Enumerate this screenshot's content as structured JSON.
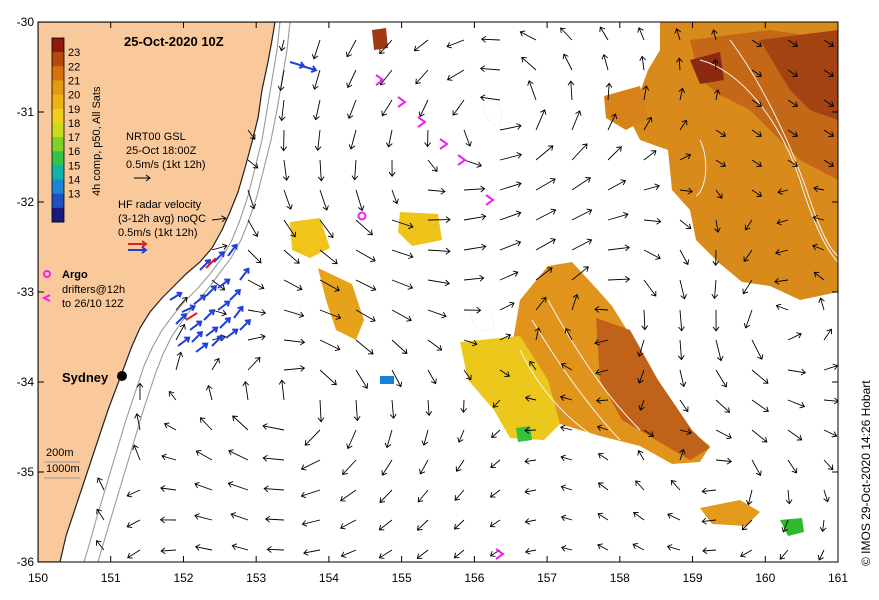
{
  "title": "25-Oct-2020 10Z",
  "colorbar": {
    "label": "4h comp, p50, All Sats",
    "ticks": [
      "23",
      "22",
      "21",
      "20",
      "19",
      "18",
      "17",
      "16",
      "15",
      "14",
      "13"
    ],
    "colors": [
      "#8b1a0d",
      "#b34a0d",
      "#d4730e",
      "#e39812",
      "#ecb216",
      "#f0cf1d",
      "#c6dc1f",
      "#7fd12a",
      "#35c24a",
      "#12b3a9",
      "#1a84d6",
      "#1f4fc1",
      "#1a1a7a"
    ]
  },
  "legend": {
    "nrt_title": "NRT00 GSL",
    "nrt_time": "25-Oct 18:00Z",
    "nrt_scale": "0.5m/s (1kt 12h)",
    "radar_title": "HF radar velocity",
    "radar_sub": "(3-12h avg) noQC",
    "radar_scale": "0.5m/s (1kt 12h)",
    "argo_label": "Argo",
    "drifters_line1": "drifters@12h",
    "drifters_line2": "to 26/10 12Z",
    "depth_200": "200m",
    "depth_1000": "1000m"
  },
  "city": "Sydney",
  "axes": {
    "x_ticks": [
      "150",
      "151",
      "152",
      "153",
      "154",
      "155",
      "156",
      "157",
      "158",
      "159",
      "160",
      "161"
    ],
    "y_ticks": [
      "-30",
      "-31",
      "-32",
      "-33",
      "-34",
      "-35",
      "-36"
    ],
    "lon_range": [
      150,
      161
    ],
    "lat_range": [
      -36,
      -30
    ]
  },
  "credit": "© IMOS 29-Oct-2020 14:26 Hobart",
  "colors": {
    "land": "#fac99b",
    "coast": "#222222",
    "isobath": "#9a9a9a",
    "arrow": "#000000",
    "radar": "#1e3fd8",
    "argo": "#ee22ee",
    "warm_core": "#c8781a"
  }
}
